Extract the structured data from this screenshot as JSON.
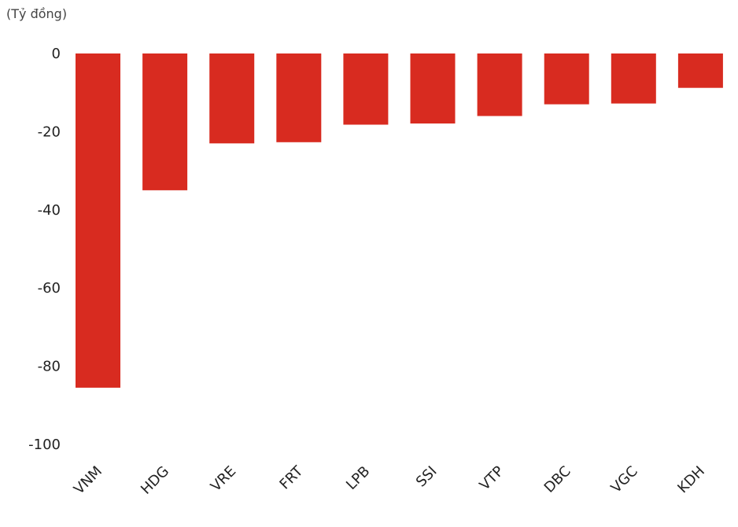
{
  "chart_data": {
    "type": "bar",
    "unit_label": "(Tỷ đồng)",
    "categories": [
      "VNM",
      "HDG",
      "VRE",
      "FRT",
      "LPB",
      "SSI",
      "VTP",
      "DBC",
      "VGC",
      "KDH"
    ],
    "values": [
      -85.5,
      -35,
      -23,
      -22.7,
      -18.2,
      -17.9,
      -16,
      -13,
      -12.8,
      -8.8
    ],
    "ylim": [
      -100,
      0
    ],
    "yticks": [
      0,
      -20,
      -40,
      -60,
      -80,
      -100
    ],
    "bar_color": "#d82b20",
    "grid": false,
    "legend": "none"
  }
}
